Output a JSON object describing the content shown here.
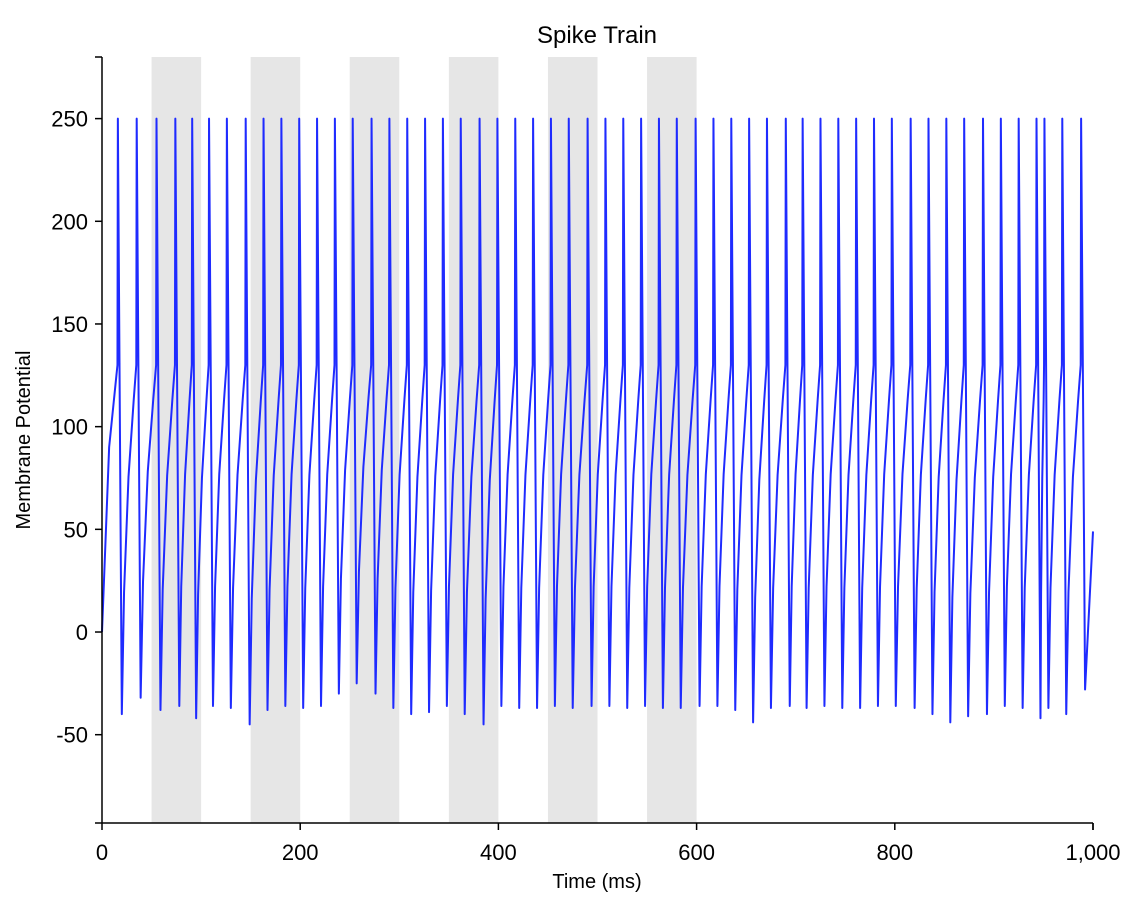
{
  "chart_data": {
    "type": "line",
    "title": "Spike Train",
    "xlabel": "Time (ms)",
    "ylabel": "Membrane Potential",
    "xlim": [
      0,
      1000
    ],
    "ylim": [
      -93,
      280
    ],
    "x_ticks": [
      0,
      200,
      400,
      600,
      800,
      1000
    ],
    "x_tick_labels": [
      "0",
      "200",
      "400",
      "600",
      "800",
      "1,000"
    ],
    "y_ticks": [
      -50,
      0,
      50,
      100,
      150,
      200,
      250
    ],
    "y_tick_labels": [
      "-50",
      "0",
      "50",
      "100",
      "150",
      "200",
      "250"
    ],
    "grid": false,
    "line_color": "#1f2bff",
    "shade_color": "#e6e6e6",
    "shaded_intervals": [
      [
        50,
        100
      ],
      [
        150,
        200
      ],
      [
        250,
        300
      ],
      [
        350,
        400
      ],
      [
        450,
        500
      ],
      [
        550,
        600
      ]
    ],
    "spike_peak": 250,
    "pre_spike_level": 130,
    "final_value": 49,
    "spike_times": [
      16,
      35,
      55,
      74,
      91,
      108,
      126,
      145,
      163,
      181,
      199,
      217,
      235,
      253,
      272,
      290,
      308,
      326,
      344,
      362,
      381,
      399,
      417,
      435,
      453,
      471,
      490,
      508,
      526,
      544,
      562,
      580,
      599,
      617,
      635,
      653,
      671,
      690,
      707,
      725,
      743,
      761,
      779,
      797,
      816,
      834,
      852,
      870,
      889,
      907,
      925,
      943,
      951,
      969,
      988
    ],
    "trough_values": [
      -40,
      -32,
      -38,
      -36,
      -42,
      -36,
      -37,
      -45,
      -38,
      -36,
      -37,
      -36,
      -30,
      -25,
      -30,
      -37,
      -40,
      -39,
      -36,
      -40,
      -45,
      -36,
      -37,
      -37,
      -36,
      -37,
      -36,
      -36,
      -37,
      -36,
      -37,
      -37,
      -36,
      -36,
      -38,
      -44,
      -37,
      -36,
      -37,
      -36,
      -37,
      -37,
      -36,
      -36,
      -37,
      -40,
      -44,
      -41,
      -40,
      -36,
      -37,
      -42,
      -37,
      -40,
      -28
    ]
  }
}
